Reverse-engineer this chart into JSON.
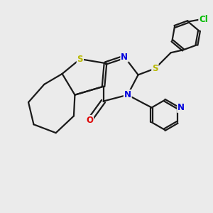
{
  "bg_color": "#ebebeb",
  "bond_color": "#1a1a1a",
  "S_color": "#b8b800",
  "N_color": "#0000dd",
  "O_color": "#dd0000",
  "Cl_color": "#00bb00",
  "line_width": 1.6,
  "figsize": [
    3.0,
    3.0
  ],
  "dpi": 100,
  "xlim": [
    0,
    10
  ],
  "ylim": [
    0,
    10
  ]
}
